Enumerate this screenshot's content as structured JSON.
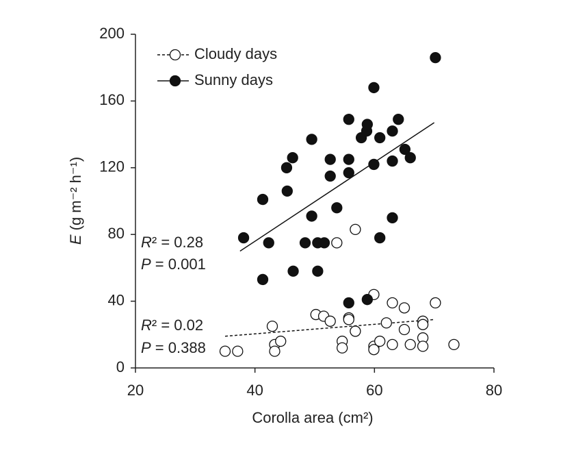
{
  "chart_data": {
    "type": "scatter",
    "xlabel": "Corolla area (cm²)",
    "ylabel": "E (g m⁻² h⁻¹)",
    "xlim": [
      20,
      80
    ],
    "xticks": [
      20,
      40,
      60,
      80
    ],
    "ylim": [
      0,
      200
    ],
    "yticks": [
      0,
      40,
      80,
      120,
      160,
      200
    ],
    "legend": "top-left",
    "series": [
      {
        "name": "Cloudy days",
        "color": "#ffffff",
        "line_style": "dashed",
        "x": [
          35.0,
          37.1,
          42.9,
          43.3,
          43.3,
          44.3,
          50.2,
          51.5,
          52.6,
          53.7,
          54.6,
          54.6,
          55.7,
          55.7,
          56.8,
          56.8,
          59.9,
          59.9,
          59.9,
          60.9,
          62.0,
          63.0,
          63.0,
          65.0,
          65.0,
          66.0,
          68.1,
          68.1,
          68.1,
          68.1,
          70.2,
          73.3
        ],
        "y": [
          10,
          10,
          25,
          14,
          10,
          16,
          32,
          31,
          28,
          75,
          16,
          12,
          30,
          29,
          83,
          22,
          44,
          13,
          11,
          16,
          27,
          39,
          14,
          36,
          23,
          14,
          28,
          26,
          18,
          13,
          39,
          14
        ],
        "trend": {
          "x": [
            35,
            70
          ],
          "y": [
            19,
            29
          ]
        },
        "annotations": [
          "R² = 0.02",
          "P = 0.388"
        ]
      },
      {
        "name": "Sunny days",
        "color": "#111111",
        "line_style": "solid",
        "x": [
          38.1,
          41.3,
          42.3,
          41.3,
          45.3,
          46.3,
          45.4,
          46.4,
          48.4,
          49.5,
          49.5,
          50.5,
          50.5,
          51.6,
          52.6,
          52.6,
          53.7,
          55.7,
          55.7,
          55.7,
          55.7,
          57.8,
          58.7,
          58.8,
          58.8,
          59.9,
          59.9,
          60.9,
          60.9,
          63.0,
          63.0,
          63.0,
          64.0,
          65.1,
          66.0,
          70.2
        ],
        "y": [
          78,
          101,
          75,
          53,
          120,
          126,
          106,
          58,
          75,
          137,
          91,
          75,
          58,
          75,
          125,
          115,
          96,
          149,
          125,
          117,
          39,
          138,
          142,
          146,
          41,
          168,
          122,
          138,
          78,
          142,
          124,
          90,
          149,
          131,
          126,
          186
        ],
        "trend": {
          "x": [
            37.5,
            70
          ],
          "y": [
            70,
            147
          ]
        },
        "annotations": [
          "R² = 0.28",
          "P = 0.001"
        ]
      }
    ]
  }
}
